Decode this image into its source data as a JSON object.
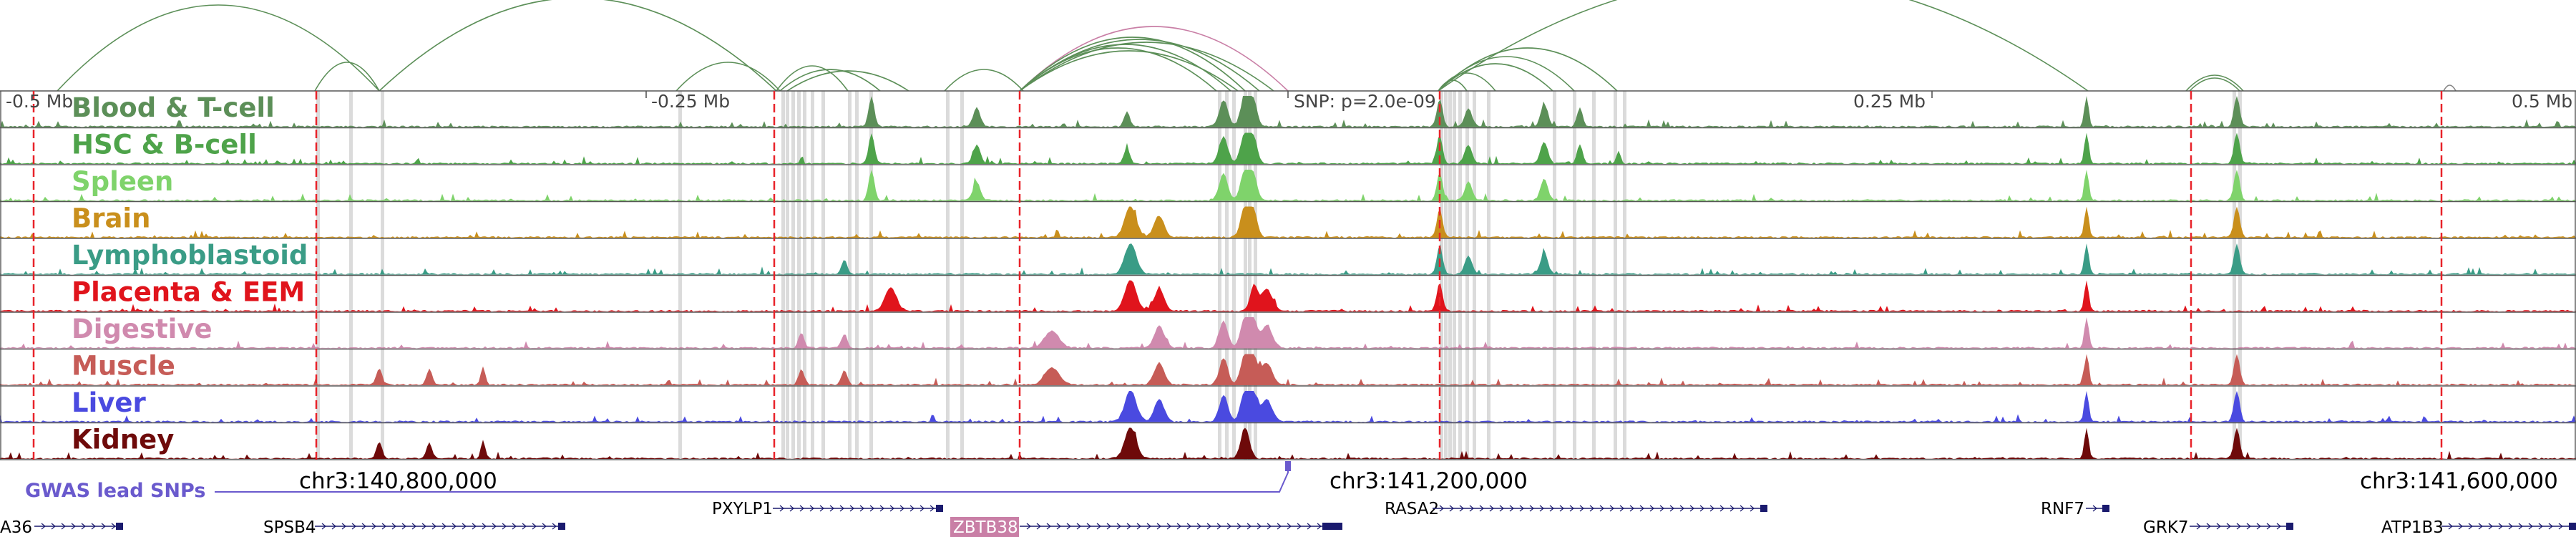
{
  "colors": {
    "background": "#ffffff",
    "track_border": "#555555",
    "marker_line": "#e8232a",
    "highlight_band": "#bdbdbd",
    "loop_green": "#5c8f58",
    "loop_pink": "#c97fa6",
    "gwas": "#6a5acd",
    "gene": "#1a1a6e",
    "gene_label_box": "#c97fa6"
  },
  "scale_labels": [
    "-0.5 Mb",
    "-0.25 Mb",
    "SNP: p=2.0e-09",
    "0.25 Mb",
    "0.5 Mb"
  ],
  "tracks": [
    {
      "label": "Blood & T-cell",
      "color": "#5c8f58"
    },
    {
      "label": "HSC & B-cell",
      "color": "#4ea34a"
    },
    {
      "label": "Spleen",
      "color": "#7fd36b"
    },
    {
      "label": "Brain",
      "color": "#c98f1c"
    },
    {
      "label": "Lymphoblastoid",
      "color": "#3a9c86"
    },
    {
      "label": "Placenta & EEM",
      "color": "#e0141c"
    },
    {
      "label": "Digestive",
      "color": "#d08aae"
    },
    {
      "label": "Muscle",
      "color": "#c65c57"
    },
    {
      "label": "Liver",
      "color": "#4a4ae0"
    },
    {
      "label": "Kidney",
      "color": "#6e0a0a"
    }
  ],
  "gwas_label": "GWAS lead SNPs",
  "coordinates": [
    "chr3:140,800,000",
    "chr3:141,200,000",
    "chr3:141,600,000"
  ],
  "genes": [
    "A36",
    "SPSB4",
    "PXYLP1",
    "ZBTB38",
    "RASA2",
    "RNF7",
    "GRK7",
    "ATP1B3"
  ]
}
